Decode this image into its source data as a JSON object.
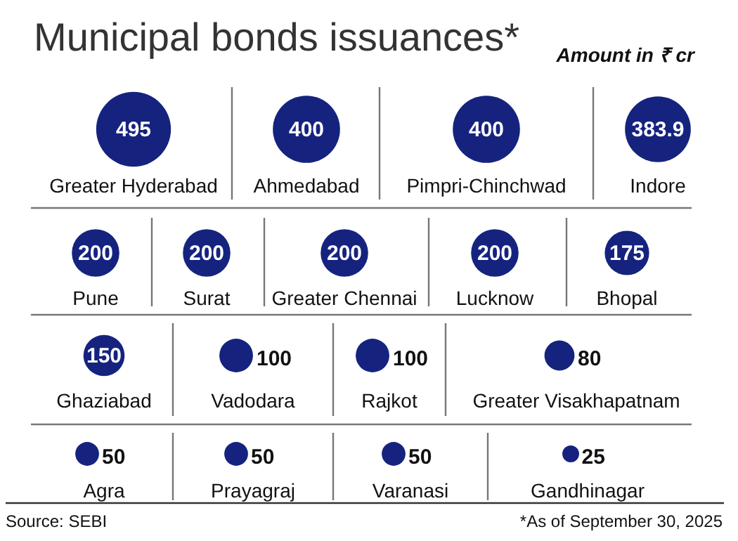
{
  "chart_data": {
    "type": "other",
    "title": "Municipal bonds issuances*",
    "subtitle": "Amount in ₹ cr",
    "categories": [
      "Greater Hyderabad",
      "Ahmedabad",
      "Pimpri-Chinchwad",
      "Indore",
      "Pune",
      "Surat",
      "Greater Chennai",
      "Lucknow",
      "Bhopal",
      "Ghaziabad",
      "Vadodara",
      "Rajkot",
      "Greater Visakhapatnam",
      "Agra",
      "Prayagraj",
      "Varanasi",
      "Gandhinagar"
    ],
    "values": [
      495,
      400,
      400,
      383.9,
      200,
      200,
      200,
      200,
      175,
      150,
      100,
      100,
      80,
      50,
      50,
      50,
      25
    ],
    "color": "#15237f",
    "data_labels": true,
    "annotations": [
      "Source: SEBI",
      "*As of September 30, 2025"
    ]
  }
}
